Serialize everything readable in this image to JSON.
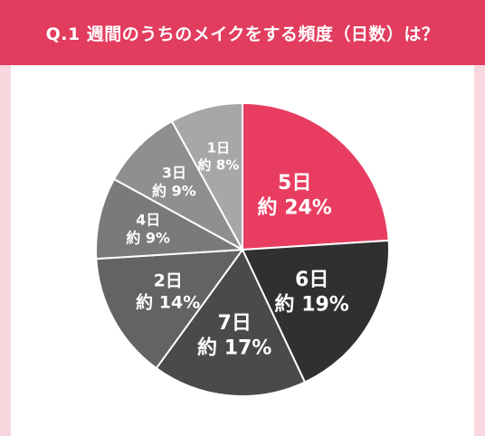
{
  "title": "Q.1 週間のうちのメイクをする頻度（日数）は？",
  "colors": {
    "accent": "#e23c5e",
    "background": "#f9d7de",
    "panel": "#ffffff"
  },
  "chart_data": {
    "type": "pie",
    "title": "Q.1 週間のうちのメイクをする頻度（日数）は？",
    "start": "12 o'clock, clockwise",
    "slices": [
      {
        "label": "5日",
        "value_label": "約 24%",
        "value": 24,
        "color": "#e83d61"
      },
      {
        "label": "6日",
        "value_label": "約 19%",
        "value": 19,
        "color": "#303030"
      },
      {
        "label": "7日",
        "value_label": "約 17%",
        "value": 17,
        "color": "#4a4a4a"
      },
      {
        "label": "2日",
        "value_label": "約 14%",
        "value": 14,
        "color": "#636363"
      },
      {
        "label": "4日",
        "value_label": "約 9%",
        "value": 9,
        "color": "#7a7a7a"
      },
      {
        "label": "3日",
        "value_label": "約 9%",
        "value": 9,
        "color": "#8f8f8f"
      },
      {
        "label": "1日",
        "value_label": "約 8%",
        "value": 8,
        "color": "#a7a7a7"
      }
    ]
  }
}
